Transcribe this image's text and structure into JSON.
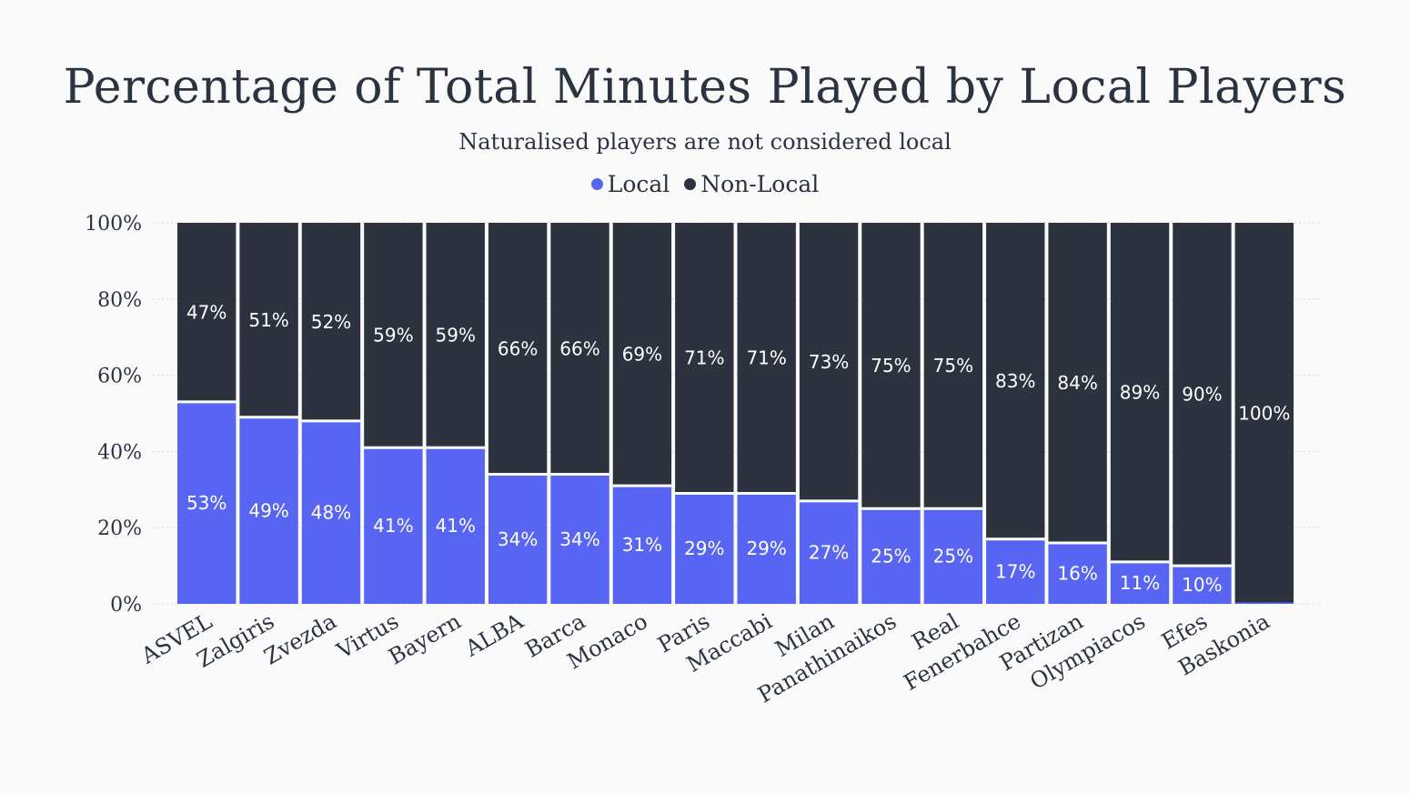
{
  "chart_data": {
    "type": "bar",
    "stacked": true,
    "title": "Percentage of Total Minutes Played by Local Players",
    "subtitle": "Naturalised players are not considered local",
    "categories": [
      "ASVEL",
      "Zalgiris",
      "Zvezda",
      "Virtus",
      "Bayern",
      "ALBA",
      "Barca",
      "Monaco",
      "Paris",
      "Maccabi",
      "Milan",
      "Panathinaikos",
      "Real",
      "Fenerbahce",
      "Partizan",
      "Olympiacos",
      "Efes",
      "Baskonia"
    ],
    "series": [
      {
        "name": "Local",
        "color": "#5865f2",
        "values": [
          53,
          49,
          48,
          41,
          41,
          34,
          34,
          31,
          29,
          29,
          27,
          25,
          25,
          17,
          16,
          11,
          10,
          0
        ],
        "labels": [
          "53%",
          "49%",
          "48%",
          "41%",
          "41%",
          "34%",
          "34%",
          "31%",
          "29%",
          "29%",
          "27%",
          "25%",
          "25%",
          "17%",
          "16%",
          "11%",
          "10%",
          ""
        ]
      },
      {
        "name": "Non-Local",
        "color": "#2d333e",
        "values": [
          47,
          51,
          52,
          59,
          59,
          66,
          66,
          69,
          71,
          71,
          73,
          75,
          75,
          83,
          84,
          89,
          90,
          100
        ],
        "labels": [
          "47%",
          "51%",
          "52%",
          "59%",
          "59%",
          "66%",
          "66%",
          "69%",
          "71%",
          "71%",
          "73%",
          "75%",
          "75%",
          "83%",
          "84%",
          "89%",
          "90%",
          "100%"
        ]
      }
    ],
    "yticks": [
      "0%",
      "20%",
      "40%",
      "60%",
      "80%",
      "100%"
    ],
    "ylim": [
      0,
      100
    ],
    "grid": true,
    "legend_position": "top-center"
  }
}
